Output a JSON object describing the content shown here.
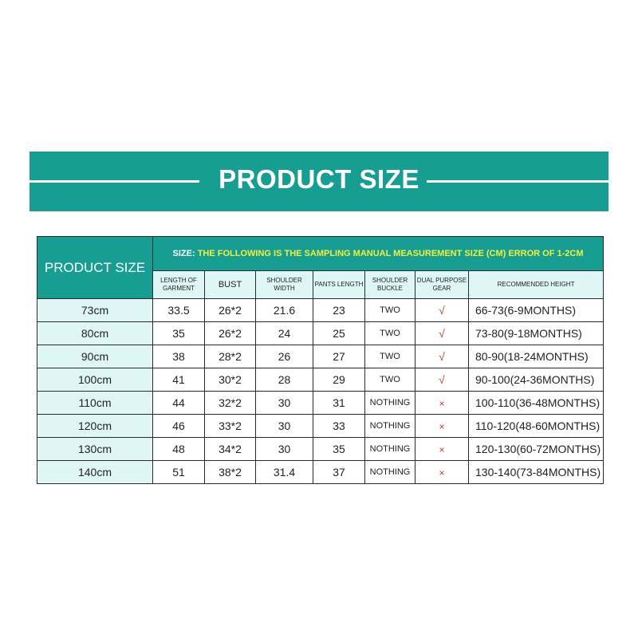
{
  "banner": {
    "title": "PRODUCT SIZE"
  },
  "table": {
    "corner_label": "PRODUCT SIZE",
    "note_label": "SIZE:",
    "note_text": " THE FOLLOWING IS THE SAMPLING MANUAL MEASUREMENT SIZE (CM) ERROR OF 1-2CM",
    "headers": [
      "LENGTH OF GARMENT",
      "BUST",
      "SHOULDER WIDTH",
      "PANTS LENGTH",
      "SHOULDER BUCKLE",
      "DUAL PURPOSE GEAR",
      "RECOMMENDED HEIGHT"
    ],
    "rows": [
      {
        "size": "73cm",
        "length": "33.5",
        "bust": "26*2",
        "shoulder": "21.6",
        "pants": "23",
        "buckle": "TWO",
        "dual": "√",
        "height": "66-73(6-9MONTHS)"
      },
      {
        "size": "80cm",
        "length": "35",
        "bust": "26*2",
        "shoulder": "24",
        "pants": "25",
        "buckle": "TWO",
        "dual": "√",
        "height": "73-80(9-18MONTHS)"
      },
      {
        "size": "90cm",
        "length": "38",
        "bust": "28*2",
        "shoulder": "26",
        "pants": "27",
        "buckle": "TWO",
        "dual": "√",
        "height": "80-90(18-24MONTHS)"
      },
      {
        "size": "100cm",
        "length": "41",
        "bust": "30*2",
        "shoulder": "28",
        "pants": "29",
        "buckle": "TWO",
        "dual": "√",
        "height": "90-100(24-36MONTHS)"
      },
      {
        "size": "110cm",
        "length": "44",
        "bust": "32*2",
        "shoulder": "30",
        "pants": "31",
        "buckle": "NOTHING",
        "dual": "×",
        "height": "100-110(36-48MONTHS)"
      },
      {
        "size": "120cm",
        "length": "46",
        "bust": "33*2",
        "shoulder": "30",
        "pants": "33",
        "buckle": "NOTHING",
        "dual": "×",
        "height": "110-120(48-60MONTHS)"
      },
      {
        "size": "130cm",
        "length": "48",
        "bust": "34*2",
        "shoulder": "30",
        "pants": "35",
        "buckle": "NOTHING",
        "dual": "×",
        "height": "120-130(60-72MONTHS)"
      },
      {
        "size": "140cm",
        "length": "51",
        "bust": "38*2",
        "shoulder": "31.4",
        "pants": "37",
        "buckle": "NOTHING",
        "dual": "×",
        "height": "130-140(73-84MONTHS)"
      }
    ]
  },
  "colors": {
    "teal": "#179d91",
    "light_cyan": "#dff6f6",
    "note_yellow": "#f3f03a",
    "mark_red": "#c0392b"
  }
}
